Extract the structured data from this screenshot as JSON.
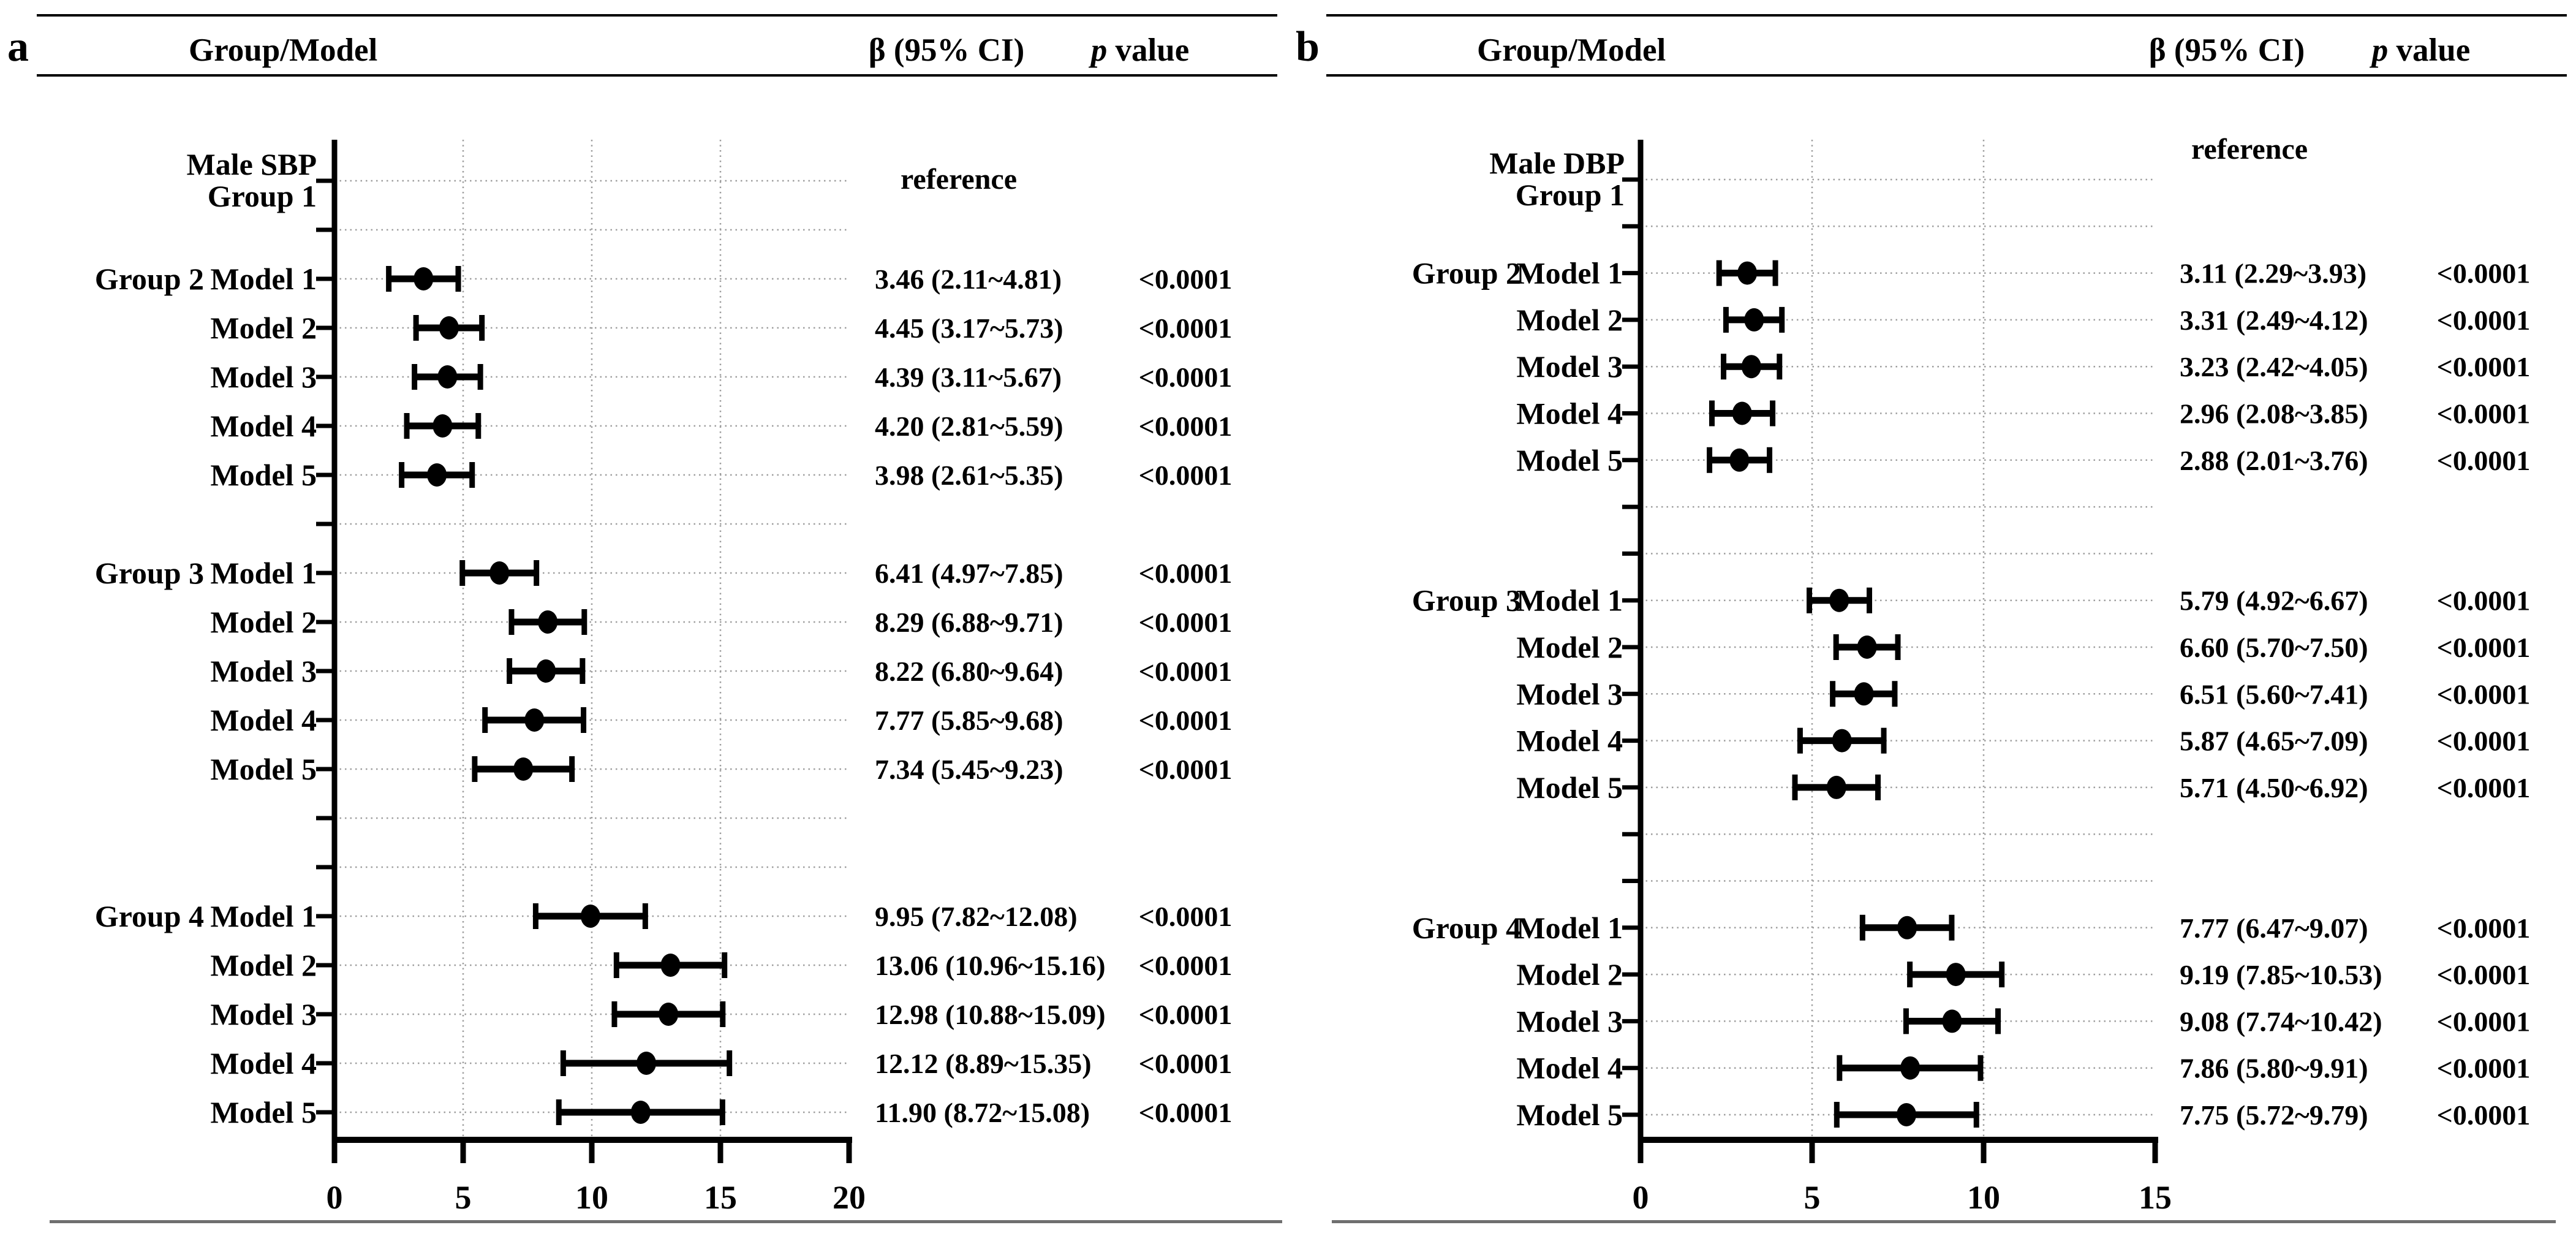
{
  "colors": {
    "text": "#000000",
    "axis": "#000000",
    "grid": "#9e9e9e",
    "bottom_rule": "#6f6f6f"
  },
  "chart_data": [
    {
      "type": "forest",
      "panel_label": "a",
      "columns": {
        "group_model": "Group/Model",
        "beta_ci": "β (95% CI)",
        "p_italic": "p",
        "p_rest": " value"
      },
      "outcome_line1": "Male SBP",
      "outcome_line2": "Group 1",
      "reference_text": "reference",
      "x_axis": {
        "min": 0,
        "max": 20,
        "ticks": [
          0,
          5,
          10,
          15,
          20
        ],
        "gridlines": [
          5,
          10,
          15
        ]
      },
      "groups": [
        {
          "name": "Group 2",
          "rows": [
            {
              "model": "Model 1",
              "beta": 3.46,
              "ci_low": 2.11,
              "ci_high": 4.81,
              "beta_ci_text": "3.46 (2.11~4.81)",
              "p_text": "<0.0001"
            },
            {
              "model": "Model 2",
              "beta": 4.45,
              "ci_low": 3.17,
              "ci_high": 5.73,
              "beta_ci_text": "4.45 (3.17~5.73)",
              "p_text": "<0.0001"
            },
            {
              "model": "Model 3",
              "beta": 4.39,
              "ci_low": 3.11,
              "ci_high": 5.67,
              "beta_ci_text": "4.39 (3.11~5.67)",
              "p_text": "<0.0001"
            },
            {
              "model": "Model 4",
              "beta": 4.2,
              "ci_low": 2.81,
              "ci_high": 5.59,
              "beta_ci_text": "4.20 (2.81~5.59)",
              "p_text": "<0.0001"
            },
            {
              "model": "Model 5",
              "beta": 3.98,
              "ci_low": 2.61,
              "ci_high": 5.35,
              "beta_ci_text": "3.98 (2.61~5.35)",
              "p_text": "<0.0001"
            }
          ]
        },
        {
          "name": "Group 3",
          "rows": [
            {
              "model": "Model 1",
              "beta": 6.41,
              "ci_low": 4.97,
              "ci_high": 7.85,
              "beta_ci_text": "6.41 (4.97~7.85)",
              "p_text": "<0.0001"
            },
            {
              "model": "Model 2",
              "beta": 8.29,
              "ci_low": 6.88,
              "ci_high": 9.71,
              "beta_ci_text": "8.29 (6.88~9.71)",
              "p_text": "<0.0001"
            },
            {
              "model": "Model 3",
              "beta": 8.22,
              "ci_low": 6.8,
              "ci_high": 9.64,
              "beta_ci_text": "8.22 (6.80~9.64)",
              "p_text": "<0.0001"
            },
            {
              "model": "Model 4",
              "beta": 7.77,
              "ci_low": 5.85,
              "ci_high": 9.68,
              "beta_ci_text": "7.77 (5.85~9.68)",
              "p_text": "<0.0001"
            },
            {
              "model": "Model 5",
              "beta": 7.34,
              "ci_low": 5.45,
              "ci_high": 9.23,
              "beta_ci_text": "7.34 (5.45~9.23)",
              "p_text": "<0.0001"
            }
          ]
        },
        {
          "name": "Group 4",
          "rows": [
            {
              "model": "Model 1",
              "beta": 9.95,
              "ci_low": 7.82,
              "ci_high": 12.08,
              "beta_ci_text": "9.95 (7.82~12.08)",
              "p_text": "<0.0001"
            },
            {
              "model": "Model 2",
              "beta": 13.06,
              "ci_low": 10.96,
              "ci_high": 15.16,
              "beta_ci_text": "13.06 (10.96~15.16)",
              "p_text": "<0.0001"
            },
            {
              "model": "Model 3",
              "beta": 12.98,
              "ci_low": 10.88,
              "ci_high": 15.09,
              "beta_ci_text": "12.98 (10.88~15.09)",
              "p_text": "<0.0001"
            },
            {
              "model": "Model 4",
              "beta": 12.12,
              "ci_low": 8.89,
              "ci_high": 15.35,
              "beta_ci_text": "12.12 (8.89~15.35)",
              "p_text": "<0.0001"
            },
            {
              "model": "Model 5",
              "beta": 11.9,
              "ci_low": 8.72,
              "ci_high": 15.08,
              "beta_ci_text": "11.90 (8.72~15.08)",
              "p_text": "<0.0001"
            }
          ]
        }
      ]
    },
    {
      "type": "forest",
      "panel_label": "b",
      "columns": {
        "group_model": "Group/Model",
        "beta_ci": "β (95% CI)",
        "p_italic": "p",
        "p_rest": " value"
      },
      "outcome_line1": "Male DBP",
      "outcome_line2": "Group 1",
      "reference_text": "reference",
      "x_axis": {
        "min": 0,
        "max": 15,
        "ticks": [
          0,
          5,
          10,
          15
        ],
        "gridlines": [
          5,
          10
        ]
      },
      "groups": [
        {
          "name": "Group 2",
          "rows": [
            {
              "model": "Model 1",
              "beta": 3.11,
              "ci_low": 2.29,
              "ci_high": 3.93,
              "beta_ci_text": "3.11 (2.29~3.93)",
              "p_text": "<0.0001"
            },
            {
              "model": "Model 2",
              "beta": 3.31,
              "ci_low": 2.49,
              "ci_high": 4.12,
              "beta_ci_text": "3.31 (2.49~4.12)",
              "p_text": "<0.0001"
            },
            {
              "model": "Model 3",
              "beta": 3.23,
              "ci_low": 2.42,
              "ci_high": 4.05,
              "beta_ci_text": "3.23 (2.42~4.05)",
              "p_text": "<0.0001"
            },
            {
              "model": "Model 4",
              "beta": 2.96,
              "ci_low": 2.08,
              "ci_high": 3.85,
              "beta_ci_text": "2.96 (2.08~3.85)",
              "p_text": "<0.0001"
            },
            {
              "model": "Model 5",
              "beta": 2.88,
              "ci_low": 2.01,
              "ci_high": 3.76,
              "beta_ci_text": "2.88 (2.01~3.76)",
              "p_text": "<0.0001"
            }
          ]
        },
        {
          "name": "Group 3",
          "rows": [
            {
              "model": "Model 1",
              "beta": 5.79,
              "ci_low": 4.92,
              "ci_high": 6.67,
              "beta_ci_text": "5.79 (4.92~6.67)",
              "p_text": "<0.0001"
            },
            {
              "model": "Model 2",
              "beta": 6.6,
              "ci_low": 5.7,
              "ci_high": 7.5,
              "beta_ci_text": "6.60 (5.70~7.50)",
              "p_text": "<0.0001"
            },
            {
              "model": "Model 3",
              "beta": 6.51,
              "ci_low": 5.6,
              "ci_high": 7.41,
              "beta_ci_text": "6.51 (5.60~7.41)",
              "p_text": "<0.0001"
            },
            {
              "model": "Model 4",
              "beta": 5.87,
              "ci_low": 4.65,
              "ci_high": 7.09,
              "beta_ci_text": "5.87 (4.65~7.09)",
              "p_text": "<0.0001"
            },
            {
              "model": "Model 5",
              "beta": 5.71,
              "ci_low": 4.5,
              "ci_high": 6.92,
              "beta_ci_text": "5.71 (4.50~6.92)",
              "p_text": "<0.0001"
            }
          ]
        },
        {
          "name": "Group 4",
          "rows": [
            {
              "model": "Model 1",
              "beta": 7.77,
              "ci_low": 6.47,
              "ci_high": 9.07,
              "beta_ci_text": "7.77 (6.47~9.07)",
              "p_text": "<0.0001"
            },
            {
              "model": "Model 2",
              "beta": 9.19,
              "ci_low": 7.85,
              "ci_high": 10.53,
              "beta_ci_text": "9.19 (7.85~10.53)",
              "p_text": "<0.0001"
            },
            {
              "model": "Model 3",
              "beta": 9.08,
              "ci_low": 7.74,
              "ci_high": 10.42,
              "beta_ci_text": "9.08 (7.74~10.42)",
              "p_text": "<0.0001"
            },
            {
              "model": "Model 4",
              "beta": 7.86,
              "ci_low": 5.8,
              "ci_high": 9.91,
              "beta_ci_text": "7.86 (5.80~9.91)",
              "p_text": "<0.0001"
            },
            {
              "model": "Model 5",
              "beta": 7.75,
              "ci_low": 5.72,
              "ci_high": 9.79,
              "beta_ci_text": "7.75 (5.72~9.79)",
              "p_text": "<0.0001"
            }
          ]
        }
      ]
    }
  ]
}
